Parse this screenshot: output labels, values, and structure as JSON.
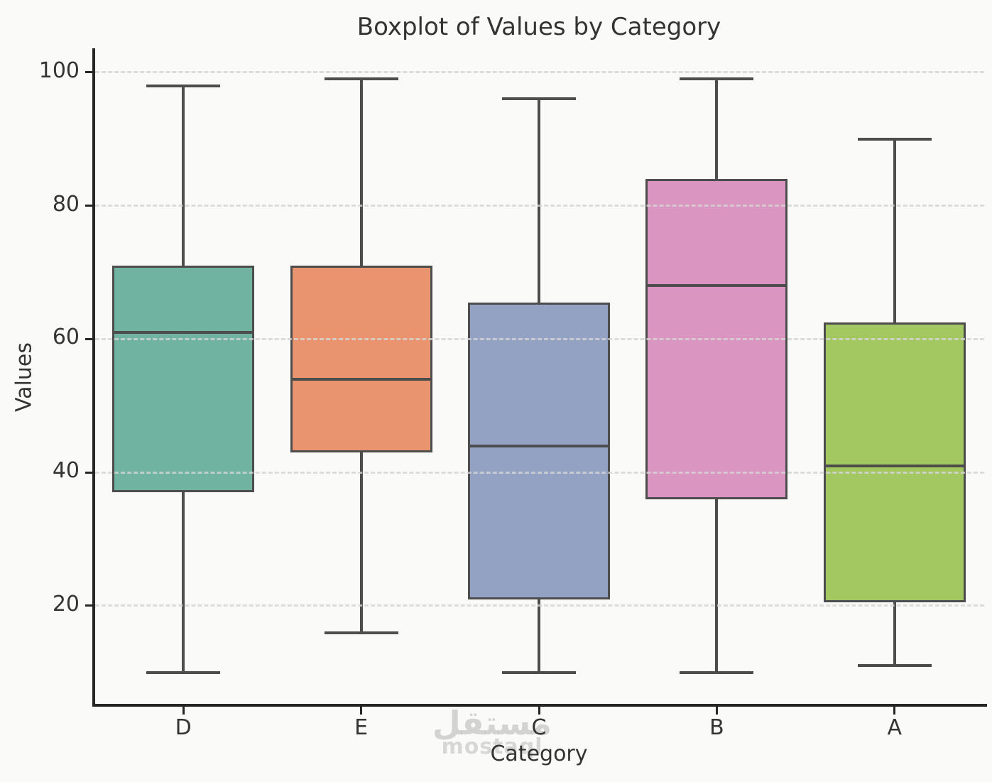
{
  "chart_data": {
    "type": "box",
    "title": "Boxplot of Values by Category",
    "xlabel": "Category",
    "ylabel": "Values",
    "categories": [
      "D",
      "E",
      "C",
      "B",
      "A"
    ],
    "yticks": [
      20,
      40,
      60,
      80,
      100
    ],
    "ylim": [
      5.3,
      103.6
    ],
    "grid": "horizontal-dashed",
    "legend": "none",
    "series": [
      {
        "name": "D",
        "min": 10,
        "q1": 37,
        "median": 61,
        "q3": 71,
        "max": 98,
        "color": "#70b3a1"
      },
      {
        "name": "E",
        "min": 16,
        "q1": 43,
        "median": 54,
        "q3": 71,
        "max": 99,
        "color": "#e9946e"
      },
      {
        "name": "C",
        "min": 10,
        "q1": 21,
        "median": 44,
        "q3": 65.5,
        "max": 96,
        "color": "#93a2c3"
      },
      {
        "name": "B",
        "min": 10,
        "q1": 36,
        "median": 68,
        "q3": 84,
        "max": 99,
        "color": "#db95c1"
      },
      {
        "name": "A",
        "min": 11,
        "q1": 20.5,
        "median": 41,
        "q3": 62.5,
        "max": 90,
        "color": "#a3c862"
      }
    ],
    "colors": {
      "box_edge": "#4d4d4d",
      "median_line": "#4d4d4d",
      "grid": "#d5d5d5",
      "spine": "#262626",
      "text": "#333333",
      "background": "#fafaf8"
    }
  },
  "watermark": {
    "arabic": "مستقل",
    "latin": "mostaql",
    "color": "#c7c7c7"
  }
}
